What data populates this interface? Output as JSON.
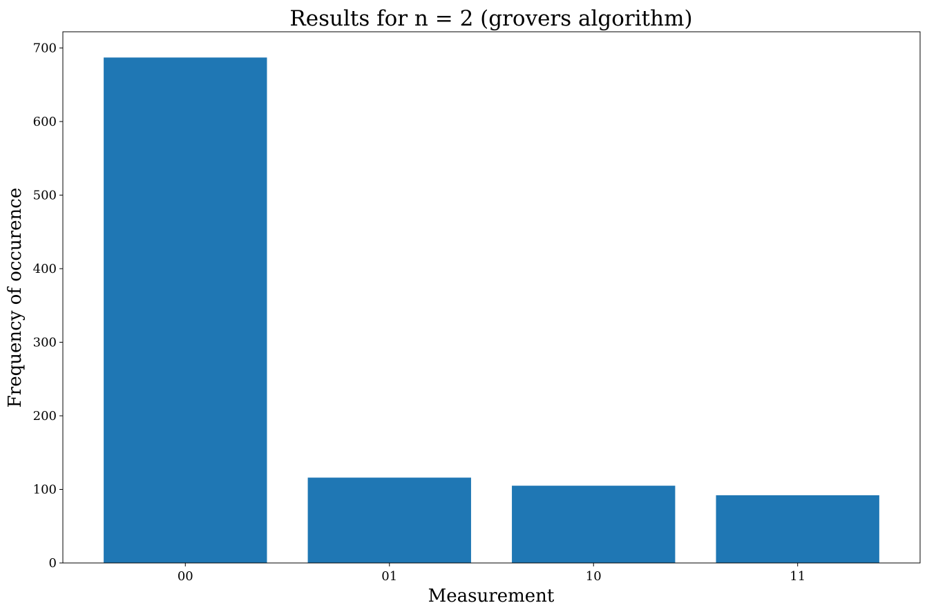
{
  "chart_data": {
    "type": "bar",
    "title": "Results for n = 2 (grovers algorithm)",
    "xlabel": "Measurement",
    "ylabel": "Frequency of occurence",
    "categories": [
      "00",
      "01",
      "10",
      "11"
    ],
    "values": [
      687,
      116,
      105,
      92
    ],
    "ylim": [
      0,
      722
    ],
    "yticks": [
      0,
      100,
      200,
      300,
      400,
      500,
      600,
      700
    ],
    "bar_color": "#1f77b4",
    "grid": false
  }
}
